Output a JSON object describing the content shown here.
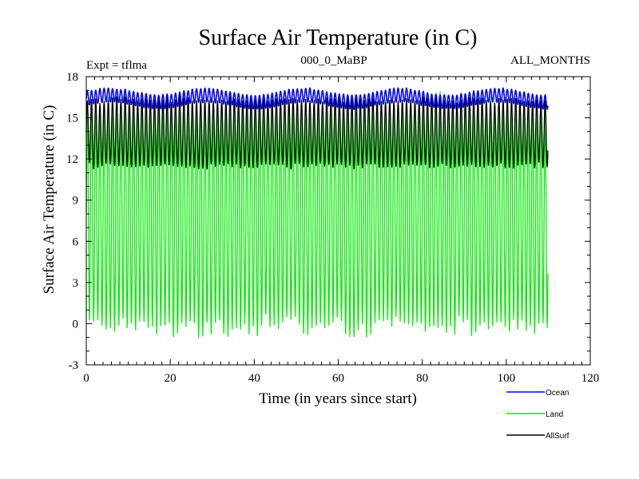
{
  "chart_data": {
    "type": "line",
    "title": "Surface Air Temperature (in C)",
    "subtitle_left": "Expt = tflma",
    "subtitle_center": "000_0_MaBP",
    "subtitle_right": "ALL_MONTHS",
    "xlabel": "Time (in years since start)",
    "ylabel": "Surface Air Temperature (in C)",
    "xlim": [
      0,
      120
    ],
    "ylim": [
      -3,
      18
    ],
    "x_ticks": [
      0,
      20,
      40,
      60,
      80,
      100,
      120
    ],
    "y_ticks": [
      -3,
      0,
      3,
      6,
      9,
      12,
      15,
      18
    ],
    "x_minor_step": 2,
    "y_minor_step": 1,
    "x_range_of_data": [
      0,
      110
    ],
    "legend_position": "bottom-right",
    "series": [
      {
        "name": "Ocean",
        "color": "#0000ff",
        "cycle": "annual",
        "approx_min": 15.9,
        "approx_max": 16.9
      },
      {
        "name": "Land",
        "color": "#00ee00",
        "cycle": "annual",
        "approx_min": -0.2,
        "approx_max": 16.0
      },
      {
        "name": "AllSurf",
        "color": "#000000",
        "cycle": "annual",
        "approx_min": 11.5,
        "approx_max": 16.3
      }
    ]
  }
}
